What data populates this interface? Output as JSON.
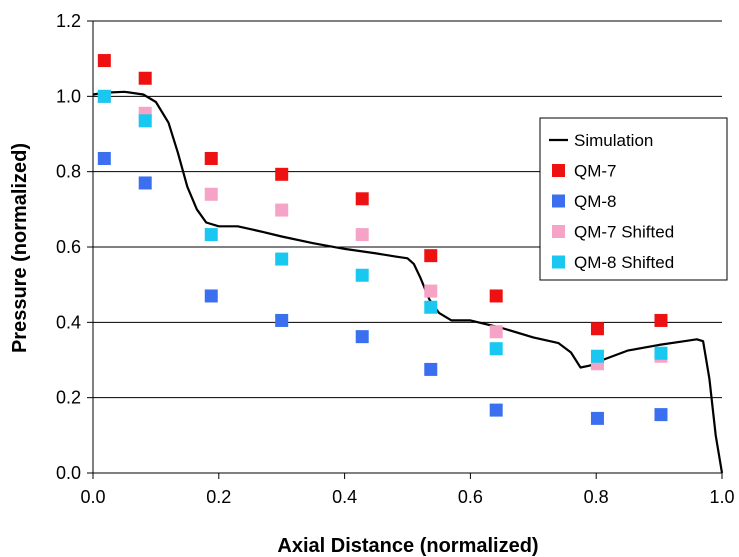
{
  "chart_data": {
    "type": "scatter",
    "title": "",
    "xlabel": "Axial Distance (normalized)",
    "ylabel": "Pressure (normalized)",
    "xlim": [
      0,
      1
    ],
    "ylim": [
      0,
      1.2
    ],
    "xticks": [
      "0.0",
      "0.2",
      "0.4",
      "0.6",
      "0.8",
      "1.0"
    ],
    "yticks": [
      "0.0",
      "0.2",
      "0.4",
      "0.6",
      "0.8",
      "1.0",
      "1.2"
    ],
    "grid": "horizontal",
    "legend_position": "right",
    "series": [
      {
        "name": "Simulation",
        "kind": "line",
        "color": "#000000",
        "points": [
          [
            0.0,
            1.005
          ],
          [
            0.02,
            1.01
          ],
          [
            0.05,
            1.012
          ],
          [
            0.08,
            1.005
          ],
          [
            0.1,
            0.985
          ],
          [
            0.12,
            0.93
          ],
          [
            0.135,
            0.85
          ],
          [
            0.15,
            0.76
          ],
          [
            0.165,
            0.7
          ],
          [
            0.18,
            0.665
          ],
          [
            0.2,
            0.655
          ],
          [
            0.23,
            0.655
          ],
          [
            0.27,
            0.64
          ],
          [
            0.3,
            0.628
          ],
          [
            0.35,
            0.61
          ],
          [
            0.4,
            0.595
          ],
          [
            0.45,
            0.583
          ],
          [
            0.48,
            0.575
          ],
          [
            0.5,
            0.57
          ],
          [
            0.51,
            0.555
          ],
          [
            0.52,
            0.52
          ],
          [
            0.535,
            0.46
          ],
          [
            0.55,
            0.425
          ],
          [
            0.57,
            0.405
          ],
          [
            0.6,
            0.405
          ],
          [
            0.65,
            0.385
          ],
          [
            0.7,
            0.36
          ],
          [
            0.74,
            0.345
          ],
          [
            0.76,
            0.32
          ],
          [
            0.775,
            0.28
          ],
          [
            0.79,
            0.285
          ],
          [
            0.81,
            0.3
          ],
          [
            0.85,
            0.325
          ],
          [
            0.9,
            0.34
          ],
          [
            0.94,
            0.35
          ],
          [
            0.96,
            0.355
          ],
          [
            0.97,
            0.35
          ],
          [
            0.98,
            0.25
          ],
          [
            0.99,
            0.1
          ],
          [
            1.0,
            0.0
          ]
        ]
      },
      {
        "name": "QM-7",
        "kind": "marker",
        "color": "#ee1111",
        "x": [
          0.018,
          0.083,
          0.188,
          0.3,
          0.428,
          0.537,
          0.641,
          0.802,
          0.903
        ],
        "y": [
          1.095,
          1.048,
          0.835,
          0.793,
          0.728,
          0.577,
          0.47,
          0.383,
          0.405
        ]
      },
      {
        "name": "QM-8",
        "kind": "marker",
        "color": "#3b6ff0",
        "x": [
          0.018,
          0.083,
          0.188,
          0.3,
          0.428,
          0.537,
          0.641,
          0.802,
          0.903
        ],
        "y": [
          0.835,
          0.77,
          0.47,
          0.405,
          0.362,
          0.275,
          0.167,
          0.145,
          0.155
        ]
      },
      {
        "name": "QM-7 Shifted",
        "kind": "marker",
        "color": "#f5a3c7",
        "x": [
          0.018,
          0.083,
          0.188,
          0.3,
          0.428,
          0.537,
          0.641,
          0.802,
          0.903
        ],
        "y": [
          1.0,
          0.955,
          0.74,
          0.698,
          0.633,
          0.483,
          0.375,
          0.29,
          0.31
        ]
      },
      {
        "name": "QM-8 Shifted",
        "kind": "marker",
        "color": "#19c8f0",
        "x": [
          0.018,
          0.083,
          0.188,
          0.3,
          0.428,
          0.537,
          0.641,
          0.802,
          0.903
        ],
        "y": [
          1.0,
          0.935,
          0.633,
          0.568,
          0.525,
          0.44,
          0.33,
          0.31,
          0.318
        ]
      }
    ]
  }
}
